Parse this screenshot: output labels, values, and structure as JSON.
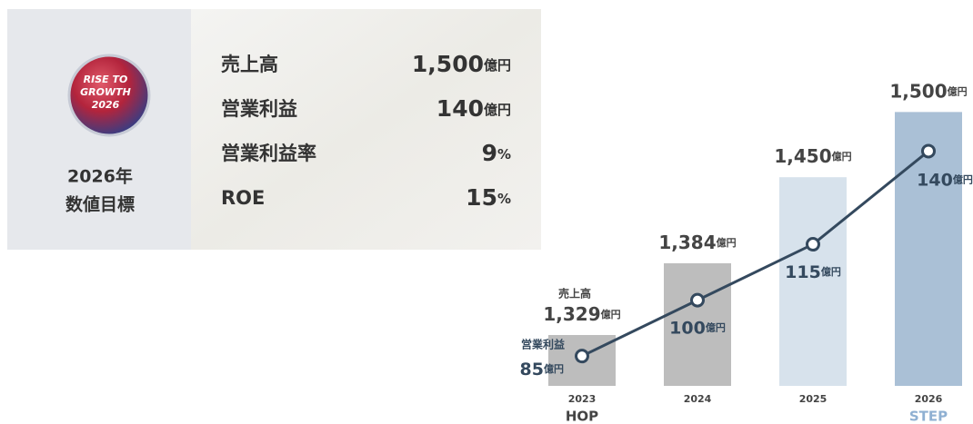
{
  "panel": {
    "logo": [
      "RISE TO",
      "GROWTH",
      "2026"
    ],
    "heading": [
      "2026年",
      "数値目標"
    ],
    "metrics": [
      {
        "label": "売上高",
        "value": "1,500",
        "unit": "億円"
      },
      {
        "label": "営業利益",
        "value": "140",
        "unit": "億円"
      },
      {
        "label": "営業利益率",
        "value": "9",
        "unit": "%"
      },
      {
        "label": "ROE",
        "value": "15",
        "unit": "%"
      }
    ]
  },
  "chart_data": {
    "type": "bar-line",
    "categories": [
      "2023",
      "2024",
      "2025",
      "2026"
    ],
    "phases": [
      "HOP",
      null,
      null,
      "STEP"
    ],
    "phase_colors": [
      "#444444",
      null,
      null,
      "#8fb0d2"
    ],
    "unit": "億円",
    "series": [
      {
        "name": "売上高",
        "type": "bar",
        "values": [
          1329,
          1384,
          1450,
          1500
        ],
        "value_labels": [
          "1,329",
          "1,384",
          "1,450",
          "1,500"
        ],
        "colors": [
          "#bdbdbd",
          "#bdbdbd",
          "#d7e2ec",
          "#aac0d6"
        ]
      },
      {
        "name": "営業利益",
        "type": "line",
        "axis": "y2",
        "color": "#34495e",
        "values": [
          85,
          100,
          115,
          140
        ]
      }
    ],
    "ylim": [
      1290,
      1510
    ],
    "y2lim": [
      77,
      154
    ]
  }
}
